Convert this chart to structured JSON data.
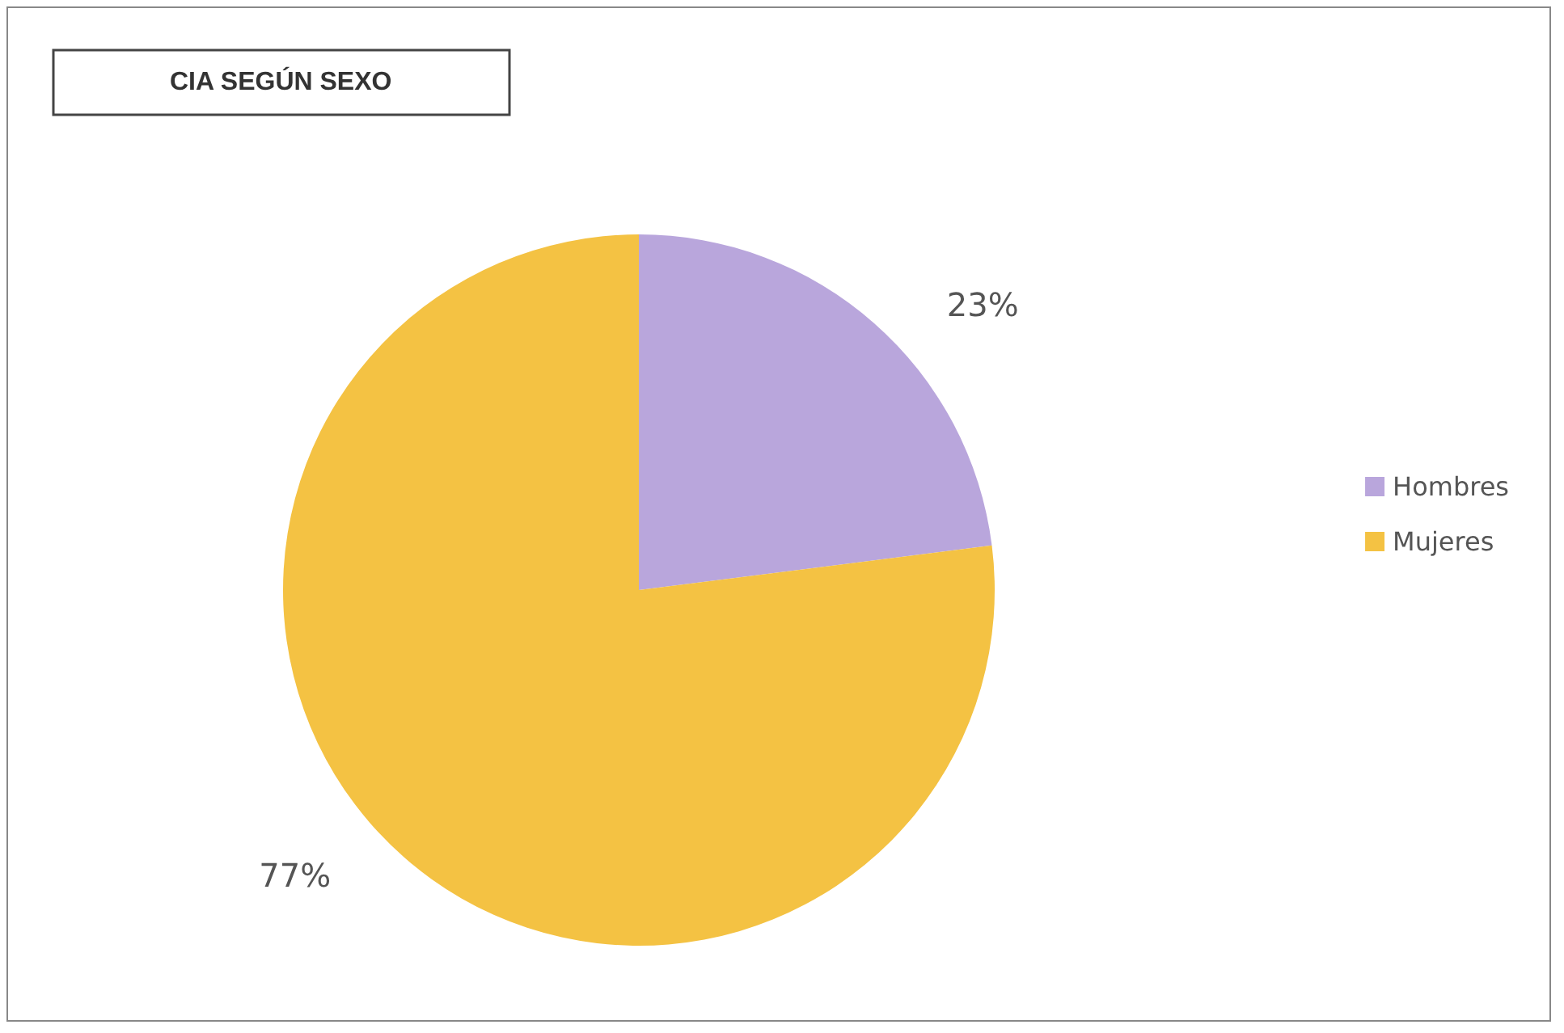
{
  "chart_data": {
    "type": "pie",
    "title": "CIA SEGÚN SEXO",
    "categories": [
      "Hombres",
      "Mujeres"
    ],
    "values": [
      23,
      77
    ],
    "colors": [
      "#b9a6dc",
      "#f4c243"
    ],
    "value_labels": [
      "23%",
      "77%"
    ],
    "legend": "right"
  }
}
